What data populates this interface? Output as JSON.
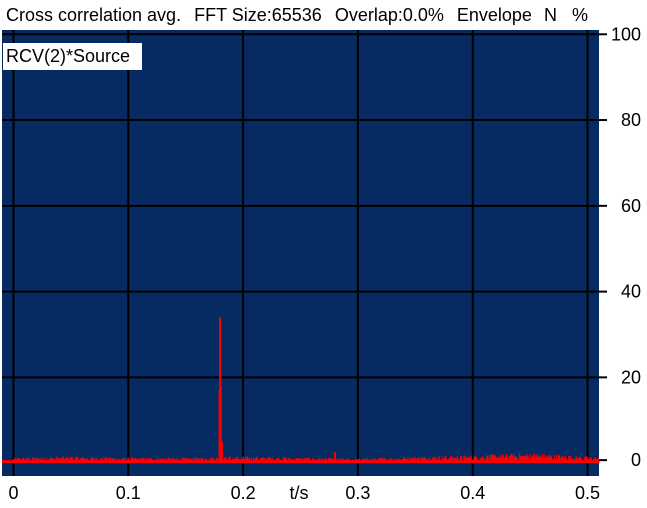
{
  "header": {
    "measurement": "Cross correlation avg.",
    "fft_size": "FFT Size:65536",
    "overlap": "Overlap:0.0%",
    "envelope": "Envelope",
    "n_label": "N",
    "unit": "%"
  },
  "chart_data": {
    "type": "line",
    "series": [
      {
        "name": "RCV(2)*Source",
        "color": "#ff0000",
        "peaks": [
          {
            "x": 0.1795,
            "y": 17
          },
          {
            "x": 0.18,
            "y": 34
          },
          {
            "x": 0.1805,
            "y": 18
          },
          {
            "x": 0.1815,
            "y": 5
          },
          {
            "x": 0.28,
            "y": 2.5
          }
        ],
        "noise_floor": [
          {
            "x": 0.0,
            "y": 1.0
          },
          {
            "x": 0.05,
            "y": 1.2
          },
          {
            "x": 0.1,
            "y": 1.0
          },
          {
            "x": 0.15,
            "y": 1.0
          },
          {
            "x": 0.2,
            "y": 1.2
          },
          {
            "x": 0.25,
            "y": 1.0
          },
          {
            "x": 0.3,
            "y": 0.8
          },
          {
            "x": 0.35,
            "y": 1.2
          },
          {
            "x": 0.4,
            "y": 1.4
          },
          {
            "x": 0.45,
            "y": 1.8
          },
          {
            "x": 0.5,
            "y": 1.2
          },
          {
            "x": 0.51,
            "y": 1.0
          }
        ]
      }
    ],
    "xlabel": "t/s",
    "ylabel": "%",
    "xlim": [
      -0.01,
      0.51
    ],
    "ylim": [
      -3,
      101
    ],
    "x_ticks": [
      0,
      0.1,
      0.2,
      0.3,
      0.4,
      0.5
    ],
    "x_tick_labels": [
      "0",
      "0.1",
      "0.2",
      "0.3",
      "0.4",
      "0.5"
    ],
    "y_ticks": [
      0,
      20,
      40,
      60,
      80,
      100
    ],
    "y_tick_labels": [
      "0",
      "20",
      "40",
      "60",
      "80",
      "100"
    ],
    "grid": true,
    "plot_background": "#062b62",
    "grid_color": "#000000",
    "legend_position": "top-left"
  }
}
